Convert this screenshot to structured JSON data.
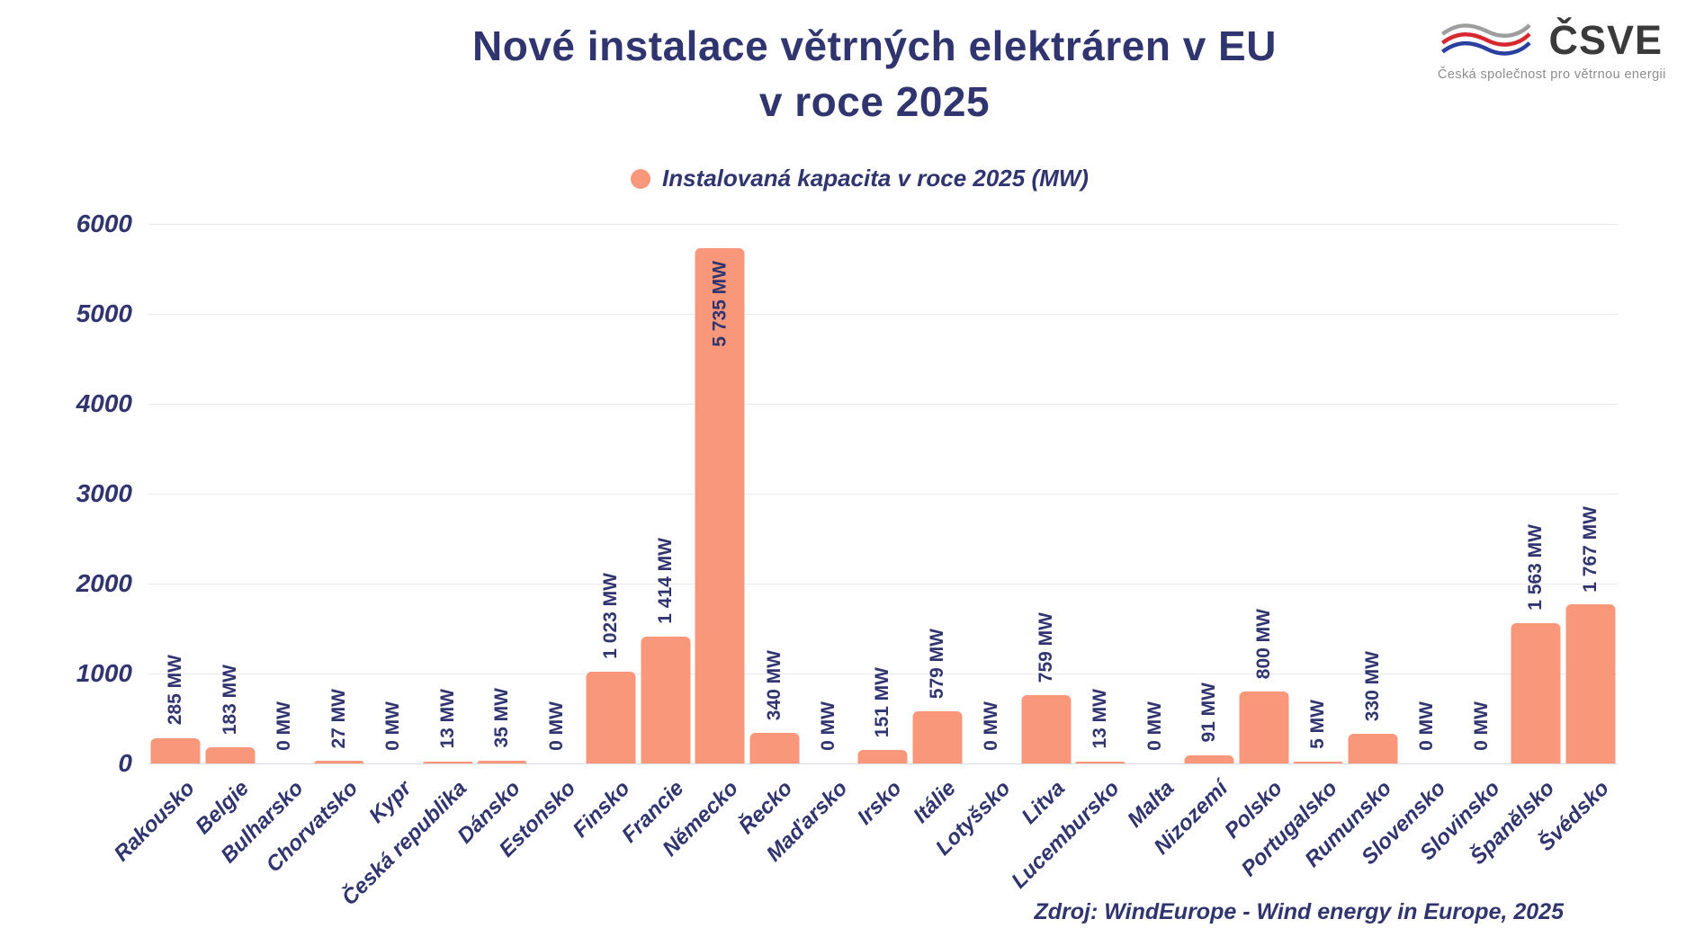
{
  "header": {
    "title_line1": "Nové instalace větrných elektráren v EU",
    "title_line2": "v roce 2025"
  },
  "legend": {
    "label": "Instalovaná kapacita v roce 2025 (MW)"
  },
  "logo": {
    "name": "ČSVE",
    "caption": "Česká společnost pro větrnou energii"
  },
  "source_note": "Zdroj: WindEurope - Wind energy in Europe, 2025",
  "colors": {
    "bar": "#F9977B",
    "navy": "#31356F",
    "grid": "#E8E8EF",
    "axis": "#D9D9E2",
    "logo_text": "#3A3A3A",
    "logo_caption": "#8D8D8D",
    "logo_wave_gray": "#9E9E9E",
    "logo_wave_red": "#D7282F",
    "logo_wave_blue": "#2B3F9E"
  },
  "chart_data": {
    "type": "bar",
    "title": "Nové instalace větrných elektráren v EU v roce 2025",
    "series_name": "Instalovaná kapacita v roce 2025 (MW)",
    "categories": [
      "Rakousko",
      "Belgie",
      "Bulharsko",
      "Chorvatsko",
      "Kypr",
      "Česká republika",
      "Dánsko",
      "Estonsko",
      "Finsko",
      "Francie",
      "Německo",
      "Řecko",
      "Maďarsko",
      "Irsko",
      "Itálie",
      "Lotyšsko",
      "Litva",
      "Lucembursko",
      "Malta",
      "Nizozemí",
      "Polsko",
      "Portugalsko",
      "Rumunsko",
      "Slovensko",
      "Slovinsko",
      "Španělsko",
      "Švédsko"
    ],
    "values": [
      285,
      183,
      0,
      27,
      0,
      13,
      35,
      0,
      1023,
      1414,
      5735,
      340,
      0,
      151,
      579,
      0,
      759,
      13,
      0,
      91,
      800,
      5,
      330,
      0,
      0,
      1563,
      1767
    ],
    "value_labels": [
      "285 MW",
      "183 MW",
      "0 MW",
      "27 MW",
      "0 MW",
      "13 MW",
      "35 MW",
      "0 MW",
      "1 023 MW",
      "1 414 MW",
      "5 735 MW",
      "340 MW",
      "0 MW",
      "151 MW",
      "579 MW",
      "0 MW",
      "759 MW",
      "13 MW",
      "0 MW",
      "91 MW",
      "800 MW",
      "5 MW",
      "330 MW",
      "0 MW",
      "0 MW",
      "1 563 MW",
      "1 767 MW"
    ],
    "xlabel": "",
    "ylabel": "",
    "ylim": [
      0,
      6000
    ],
    "yticks": [
      0,
      1000,
      2000,
      3000,
      4000,
      5000,
      6000
    ],
    "grid": "horizontal",
    "legend_position": "top",
    "bar_color": "#F9977B"
  }
}
